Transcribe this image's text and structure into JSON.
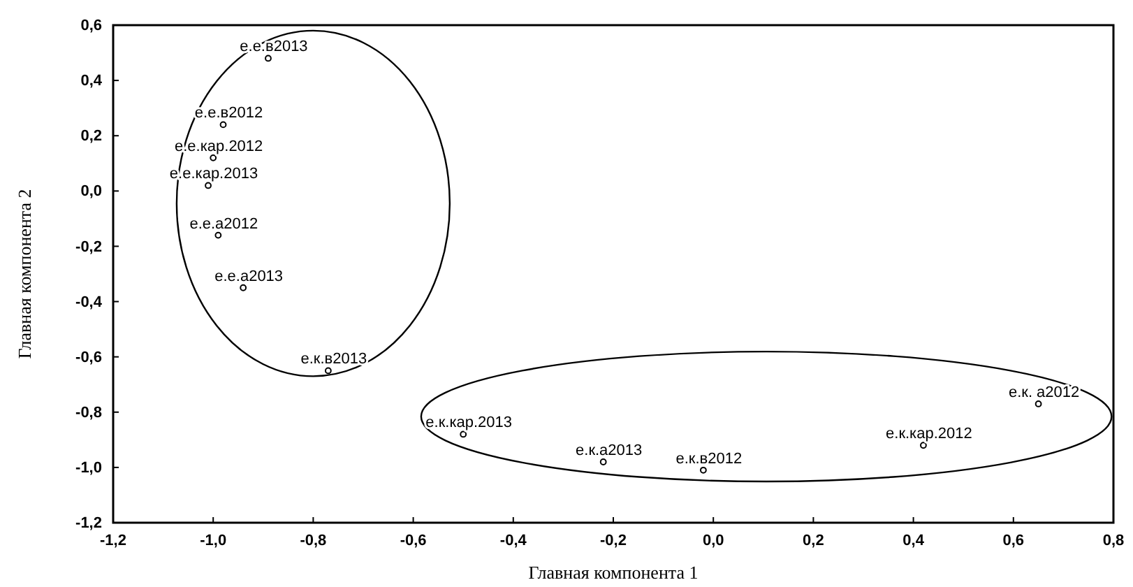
{
  "chart_data": {
    "type": "scatter",
    "xlabel": "Главная компонента 1",
    "ylabel": "Главная компонента 2",
    "x": [
      -0.89,
      -0.98,
      -1.0,
      -1.01,
      -0.99,
      -0.94,
      -0.77,
      -0.5,
      -0.22,
      -0.02,
      0.42,
      0.65
    ],
    "values": [
      0.48,
      0.24,
      0.12,
      0.02,
      -0.16,
      -0.35,
      -0.65,
      -0.88,
      -0.98,
      -1.01,
      -0.92,
      -0.77
    ],
    "color": "#000000",
    "marker": "circle",
    "xlim": [
      -1.2,
      0.8
    ],
    "xticks": [
      {
        "value": -1.2,
        "label": "-1,2"
      },
      {
        "value": -1.0,
        "label": "-1,0"
      },
      {
        "value": -0.8,
        "label": "-0,8"
      },
      {
        "value": -0.6,
        "label": "-0,6"
      },
      {
        "value": -0.4,
        "label": "-0,4"
      },
      {
        "value": -0.2,
        "label": "-0,2"
      },
      {
        "value": 0,
        "label": "0,0"
      },
      {
        "value": 0.2,
        "label": "0,2"
      },
      {
        "value": 0.4,
        "label": "0,4"
      },
      {
        "value": 0.6,
        "label": "0,6"
      },
      {
        "value": 0.8,
        "label": "0,8"
      }
    ],
    "ylim": [
      -1.2,
      0.6
    ],
    "yticks": [
      {
        "value": -1.2,
        "label": "-1,2"
      },
      {
        "value": -1.0,
        "label": "-1,0"
      },
      {
        "value": -0.8,
        "label": "-0,8"
      },
      {
        "value": -0.6,
        "label": "-0,6"
      },
      {
        "value": -0.4,
        "label": "-0,4"
      },
      {
        "value": -0.2,
        "label": "-0,2"
      },
      {
        "value": 0,
        "label": "0,0"
      },
      {
        "value": 0.2,
        "label": "0,2"
      },
      {
        "value": 0.4,
        "label": "0,4"
      },
      {
        "value": 0.6,
        "label": "0,6"
      }
    ],
    "grid": false,
    "annotations": [
      {
        "text": "е.е.в2013",
        "x": -0.89,
        "y": 0.48
      },
      {
        "text": "е.е.в2012",
        "x": -0.98,
        "y": 0.24
      },
      {
        "text": "е.е.кар.2012",
        "x": -1.0,
        "y": 0.12
      },
      {
        "text": "е.е.кар.2013",
        "x": -1.01,
        "y": 0.02
      },
      {
        "text": "е.е.а2012",
        "x": -0.99,
        "y": -0.16
      },
      {
        "text": "е.е.а2013",
        "x": -0.94,
        "y": -0.35
      },
      {
        "text": "е.к.в2013",
        "x": -0.77,
        "y": -0.65
      },
      {
        "text": "е.к.кар.2013",
        "x": -0.5,
        "y": -0.88
      },
      {
        "text": "е.к.а2013",
        "x": -0.22,
        "y": -0.98
      },
      {
        "text": "е.к.в2012",
        "x": -0.02,
        "y": -1.01
      },
      {
        "text": "е.к.кар.2012",
        "x": 0.42,
        "y": -0.92
      },
      {
        "text": "е.к. а2012",
        "x": 0.65,
        "y": -0.77
      }
    ]
  }
}
